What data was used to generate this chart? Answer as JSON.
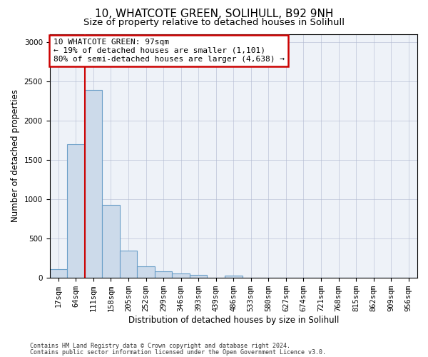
{
  "title1": "10, WHATCOTE GREEN, SOLIHULL, B92 9NH",
  "title2": "Size of property relative to detached houses in Solihull",
  "xlabel": "Distribution of detached houses by size in Solihull",
  "ylabel": "Number of detached properties",
  "bar_labels": [
    "17sqm",
    "64sqm",
    "111sqm",
    "158sqm",
    "205sqm",
    "252sqm",
    "299sqm",
    "346sqm",
    "393sqm",
    "439sqm",
    "486sqm",
    "533sqm",
    "580sqm",
    "627sqm",
    "674sqm",
    "721sqm",
    "768sqm",
    "815sqm",
    "862sqm",
    "909sqm",
    "956sqm"
  ],
  "bar_values": [
    110,
    1700,
    2390,
    930,
    350,
    150,
    80,
    55,
    40,
    0,
    30,
    0,
    0,
    0,
    0,
    0,
    0,
    0,
    0,
    0,
    0
  ],
  "bar_color": "#ccdaea",
  "bar_edge_color": "#6b9fc8",
  "vline_color": "#cc0000",
  "vline_x": 2.0,
  "annotation_text": "10 WHATCOTE GREEN: 97sqm\n← 19% of detached houses are smaller (1,101)\n80% of semi-detached houses are larger (4,638) →",
  "annotation_box_color": "#ffffff",
  "annotation_box_edge_color": "#cc0000",
  "ylim": [
    0,
    3100
  ],
  "yticks": [
    0,
    500,
    1000,
    1500,
    2000,
    2500,
    3000
  ],
  "footer1": "Contains HM Land Registry data © Crown copyright and database right 2024.",
  "footer2": "Contains public sector information licensed under the Open Government Licence v3.0.",
  "bg_color": "#eef2f8",
  "grid_color": "#b0b8d0",
  "title_fontsize": 11,
  "subtitle_fontsize": 9.5,
  "axis_label_fontsize": 8.5,
  "tick_fontsize": 7.5,
  "footer_fontsize": 6.0
}
